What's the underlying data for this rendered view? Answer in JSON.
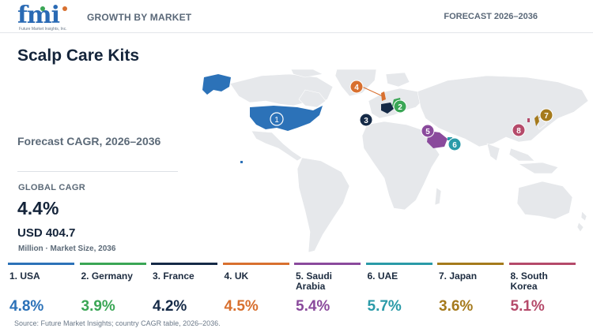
{
  "header": {
    "logo_text": "fmi",
    "logo_subtext": "Future Market Insights, Inc.",
    "left_label": "GROWTH BY MARKET",
    "right_label": "FORECAST 2026–2036"
  },
  "title": "Scalp Care Kits",
  "cagr_section_label": "Forecast CAGR, 2026–2036",
  "global": {
    "label": "GLOBAL CAGR",
    "value": "4.4%",
    "market_size": "USD 404.7",
    "market_size_unit": "Million · Market Size, 2036"
  },
  "chart_data": {
    "type": "map",
    "unit": "% CAGR",
    "series": [
      {
        "rank": 1,
        "label": "1. USA",
        "country": "USA",
        "cagr": 4.8,
        "value_text": "4.8%",
        "color": "#2c72b8"
      },
      {
        "rank": 2,
        "label": "2. Germany",
        "country": "Germany",
        "cagr": 3.9,
        "value_text": "3.9%",
        "color": "#3aa655"
      },
      {
        "rank": 3,
        "label": "3. France",
        "country": "France",
        "cagr": 4.2,
        "value_text": "4.2%",
        "color": "#152a47"
      },
      {
        "rank": 4,
        "label": "4. UK",
        "country": "UK",
        "cagr": 4.5,
        "value_text": "4.5%",
        "color": "#d8702f"
      },
      {
        "rank": 5,
        "label": "5. Saudi Arabia",
        "country": "Saudi Arabia",
        "cagr": 5.4,
        "value_text": "5.4%",
        "color": "#8a4a9c"
      },
      {
        "rank": 6,
        "label": "6. UAE",
        "country": "UAE",
        "cagr": 5.7,
        "value_text": "5.7%",
        "color": "#2a9aa8"
      },
      {
        "rank": 7,
        "label": "7. Japan",
        "country": "Japan",
        "cagr": 3.6,
        "value_text": "3.6%",
        "color": "#a57a1c"
      },
      {
        "rank": 8,
        "label": "8. South Korea",
        "country": "South Korea",
        "cagr": 5.1,
        "value_text": "5.1%",
        "color": "#b54a6a"
      }
    ]
  },
  "source": "Source: Future Market Insights; country CAGR table, 2026–2036."
}
